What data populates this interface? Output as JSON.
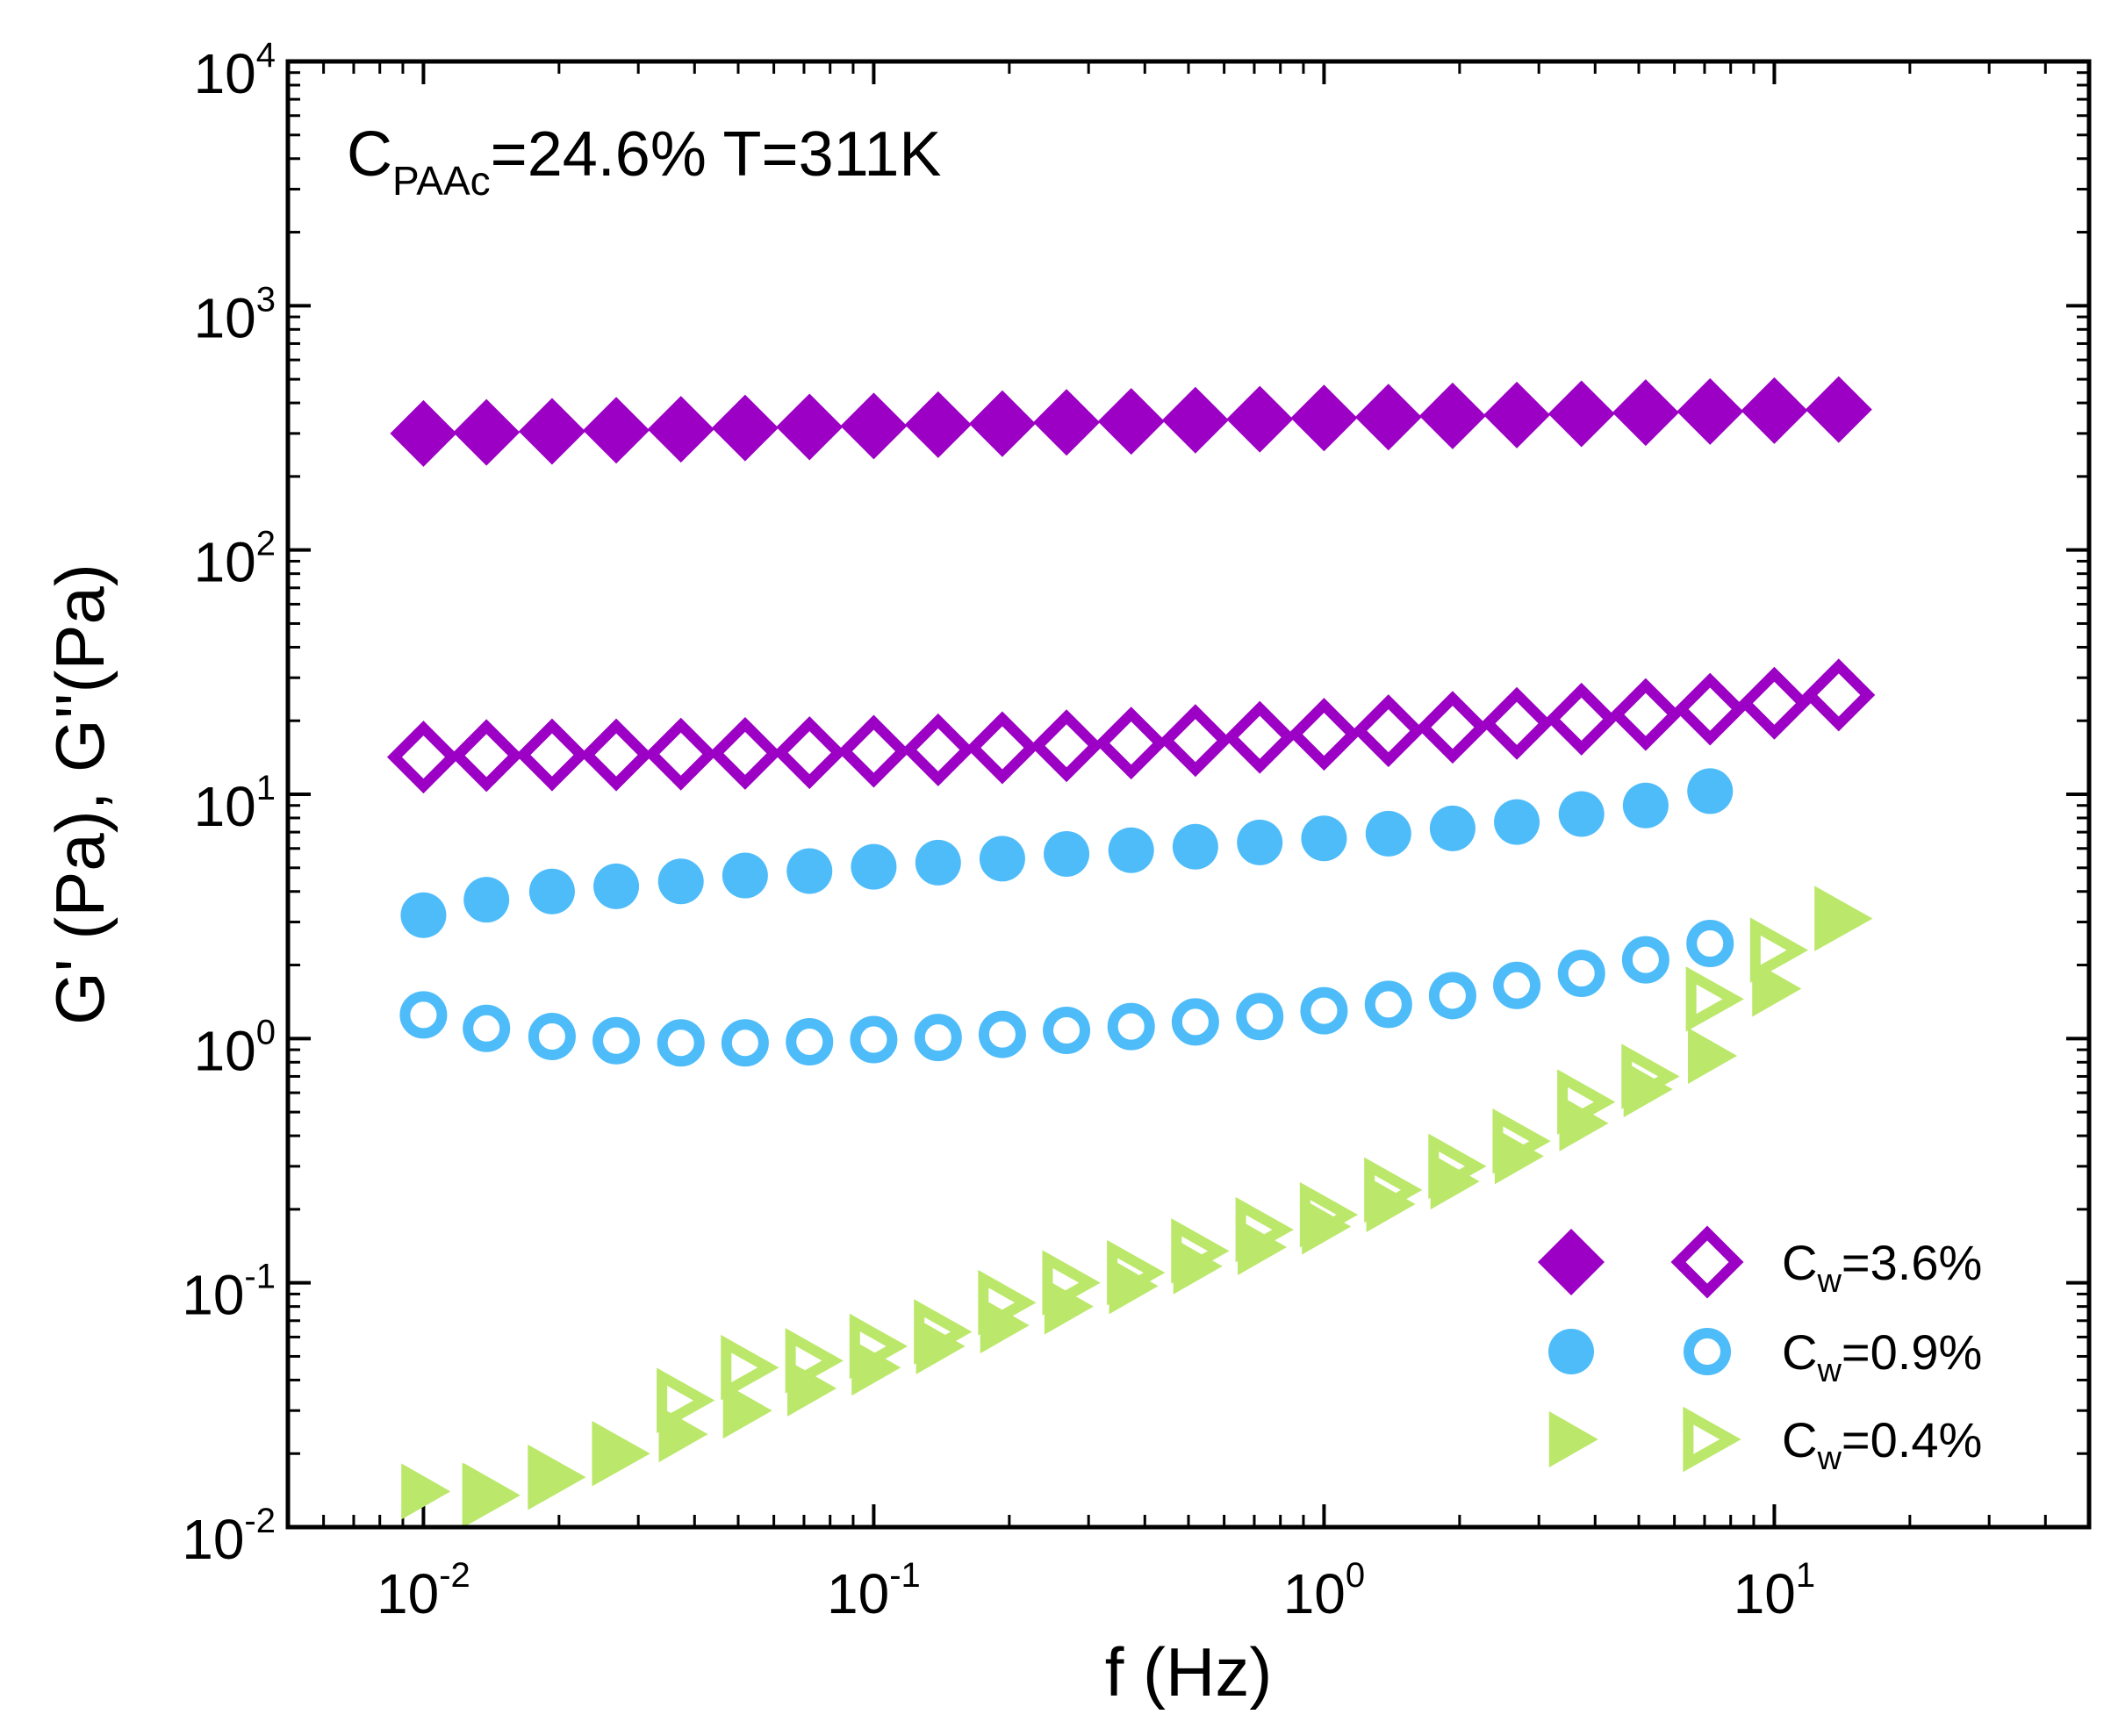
{
  "chart_data": {
    "type": "scatter",
    "xscale": "log",
    "yscale": "log",
    "xlim": [
      0.005,
      50
    ],
    "ylim": [
      0.01,
      10000
    ],
    "xlabel": "f (Hz)",
    "ylabel": "G' (Pa), G''(Pa)",
    "xticks": [
      {
        "base": "10",
        "exp": "-2",
        "value": 0.01
      },
      {
        "base": "10",
        "exp": "-1",
        "value": 0.1
      },
      {
        "base": "10",
        "exp": "0",
        "value": 1
      },
      {
        "base": "10",
        "exp": "1",
        "value": 10
      }
    ],
    "yticks": [
      {
        "base": "10",
        "exp": "-2",
        "value": 0.01
      },
      {
        "base": "10",
        "exp": "-1",
        "value": 0.1
      },
      {
        "base": "10",
        "exp": "0",
        "value": 1
      },
      {
        "base": "10",
        "exp": "1",
        "value": 10
      },
      {
        "base": "10",
        "exp": "2",
        "value": 100
      },
      {
        "base": "10",
        "exp": "3",
        "value": 1000
      },
      {
        "base": "10",
        "exp": "4",
        "value": 10000
      }
    ],
    "annotation": {
      "c": "C",
      "sub": "PAAc",
      "rest": "=24.6%   T=311K"
    },
    "legend_position": "bottom-right",
    "legend": [
      {
        "prefix": "C",
        "sub": "w",
        "rest": "=3.6%"
      },
      {
        "prefix": "C",
        "sub": "w",
        "rest": "=0.9%"
      },
      {
        "prefix": "C",
        "sub": "w",
        "rest": "=0.4%"
      }
    ],
    "series": [
      {
        "name": "G' Cw=3.6%",
        "color": "#9b00c4",
        "marker": "diamond",
        "filled": true,
        "x": [
          0.01,
          0.0138,
          0.0193,
          0.0268,
          0.0373,
          0.0518,
          0.072,
          0.1,
          0.139,
          0.193,
          0.268,
          0.373,
          0.518,
          0.72,
          1.0,
          1.39,
          1.93,
          2.68,
          3.73,
          5.18,
          7.2,
          10.0,
          13.9
        ],
        "y": [
          300,
          303,
          306,
          309,
          312,
          316,
          319,
          322,
          326,
          329,
          333,
          336,
          340,
          343,
          347,
          350,
          354,
          357,
          361,
          365,
          369,
          372,
          376
        ]
      },
      {
        "name": "G'' Cw=3.6%",
        "color": "#9b00c4",
        "marker": "diamond",
        "filled": false,
        "x": [
          0.01,
          0.0138,
          0.0193,
          0.0268,
          0.0373,
          0.0518,
          0.072,
          0.1,
          0.139,
          0.193,
          0.268,
          0.373,
          0.518,
          0.72,
          1.0,
          1.39,
          1.93,
          2.68,
          3.73,
          5.18,
          7.2,
          10.0,
          13.9
        ],
        "y": [
          14.2,
          14.4,
          14.5,
          14.5,
          14.6,
          14.7,
          14.8,
          15.0,
          15.2,
          15.5,
          15.8,
          16.2,
          16.6,
          17.1,
          17.6,
          18.2,
          18.8,
          19.5,
          20.3,
          21.2,
          22.3,
          23.6,
          25.5
        ]
      },
      {
        "name": "G' Cw=0.9%",
        "color": "#4fbcfa",
        "marker": "circle",
        "filled": true,
        "x": [
          0.01,
          0.0138,
          0.0193,
          0.0268,
          0.0373,
          0.0518,
          0.072,
          0.1,
          0.139,
          0.193,
          0.268,
          0.373,
          0.518,
          0.72,
          1.0,
          1.39,
          1.93,
          2.68,
          3.73,
          5.18,
          7.2
        ],
        "y": [
          3.2,
          3.7,
          4.0,
          4.2,
          4.4,
          4.65,
          4.85,
          5.05,
          5.25,
          5.45,
          5.7,
          5.9,
          6.1,
          6.35,
          6.6,
          6.9,
          7.25,
          7.7,
          8.3,
          9.0,
          10.3
        ]
      },
      {
        "name": "G'' Cw=0.9%",
        "color": "#4fbcfa",
        "marker": "circle",
        "filled": false,
        "x": [
          0.01,
          0.0138,
          0.0193,
          0.0268,
          0.0373,
          0.0518,
          0.072,
          0.1,
          0.139,
          0.193,
          0.268,
          0.373,
          0.518,
          0.72,
          1.0,
          1.39,
          1.93,
          2.68,
          3.73,
          5.18,
          7.2
        ],
        "y": [
          1.25,
          1.1,
          1.02,
          0.98,
          0.96,
          0.96,
          0.97,
          0.99,
          1.01,
          1.04,
          1.08,
          1.12,
          1.17,
          1.23,
          1.3,
          1.38,
          1.5,
          1.65,
          1.85,
          2.1,
          2.45
        ]
      },
      {
        "name": "G' Cw=0.4%",
        "color": "#bbe86a",
        "marker": "triangle-right",
        "filled": true,
        "x": [
          0.01,
          0.0138,
          0.0193,
          0.0268,
          0.0373,
          0.0518,
          0.072,
          0.1,
          0.139,
          0.193,
          0.268,
          0.373,
          0.518,
          0.72,
          1.0,
          1.39,
          1.93,
          2.68,
          3.73,
          5.18,
          7.2,
          10.0,
          13.9
        ],
        "y": [
          0.014,
          0.014,
          0.0165,
          0.0195,
          0.024,
          0.03,
          0.037,
          0.045,
          0.055,
          0.067,
          0.08,
          0.097,
          0.117,
          0.14,
          0.17,
          0.21,
          0.26,
          0.33,
          0.45,
          0.62,
          0.85,
          1.6,
          3.1
        ]
      },
      {
        "name": "G'' Cw=0.4%",
        "color": "#bbe86a",
        "marker": "triangle-right",
        "filled": false,
        "x": [
          0.0138,
          0.0193,
          0.0268,
          0.0373,
          0.0518,
          0.072,
          0.1,
          0.139,
          0.193,
          0.268,
          0.373,
          0.518,
          0.72,
          1.0,
          1.39,
          1.93,
          2.68,
          3.73,
          5.18,
          7.2,
          10.0,
          13.9
        ],
        "y": [
          0.0135,
          0.016,
          0.02,
          0.033,
          0.045,
          0.048,
          0.055,
          0.063,
          0.083,
          0.1,
          0.11,
          0.135,
          0.165,
          0.19,
          0.24,
          0.3,
          0.38,
          0.55,
          0.7,
          1.45,
          2.3,
          3.1
        ]
      }
    ]
  }
}
